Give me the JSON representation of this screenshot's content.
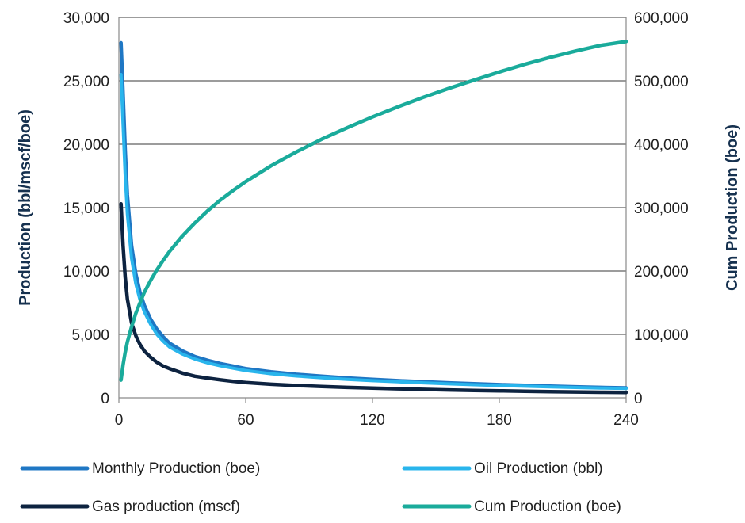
{
  "chart_data": {
    "type": "line",
    "title": "",
    "xlabel": "",
    "ylabel": "Production (bbl/mscf/boe)",
    "y2label": "Cum Production (boe)",
    "xlim": [
      0,
      240
    ],
    "ylim": [
      0,
      30000
    ],
    "y2lim": [
      0,
      600000
    ],
    "x_ticks": [
      "0",
      "60",
      "120",
      "180",
      "240"
    ],
    "y_ticks": [
      "0",
      "5,000",
      "10,000",
      "15,000",
      "20,000",
      "25,000",
      "30,000"
    ],
    "y2_ticks": [
      "0",
      "100,000",
      "200,000",
      "300,000",
      "400,000",
      "500,000",
      "600,000"
    ],
    "grid": true,
    "legend_position": "bottom",
    "series": [
      {
        "name": "Monthly Production (boe)",
        "axis": "left",
        "color": "#1f77c4",
        "x": [
          1,
          2,
          3,
          4,
          6,
          8,
          10,
          12,
          15,
          18,
          21,
          24,
          30,
          36,
          42,
          48,
          54,
          60,
          72,
          84,
          96,
          108,
          120,
          132,
          144,
          156,
          168,
          180,
          192,
          204,
          216,
          228,
          240
        ],
        "values": [
          28000,
          24000,
          19500,
          16000,
          12000,
          9800,
          8300,
          7300,
          6200,
          5400,
          4800,
          4300,
          3700,
          3250,
          2950,
          2700,
          2500,
          2300,
          2050,
          1850,
          1700,
          1560,
          1450,
          1350,
          1260,
          1180,
          1110,
          1040,
          980,
          920,
          870,
          820,
          780
        ]
      },
      {
        "name": "Oil Production (bbl)",
        "axis": "left",
        "color": "#29b5ec",
        "x": [
          1,
          2,
          3,
          4,
          6,
          8,
          10,
          12,
          15,
          18,
          21,
          24,
          30,
          36,
          42,
          48,
          54,
          60,
          72,
          84,
          96,
          108,
          120,
          132,
          144,
          156,
          168,
          180,
          192,
          204,
          216,
          228,
          240
        ],
        "values": [
          25500,
          21500,
          17500,
          14500,
          11000,
          9000,
          7700,
          6800,
          5800,
          5000,
          4450,
          4000,
          3450,
          3050,
          2750,
          2520,
          2330,
          2150,
          1900,
          1720,
          1580,
          1450,
          1350,
          1260,
          1180,
          1100,
          1030,
          970,
          910,
          860,
          810,
          770,
          730
        ]
      },
      {
        "name": "Gas production (mscf)",
        "axis": "left",
        "color": "#0d2340",
        "x": [
          1,
          2,
          3,
          4,
          6,
          8,
          10,
          12,
          15,
          18,
          21,
          24,
          30,
          36,
          42,
          48,
          54,
          60,
          72,
          84,
          96,
          108,
          120,
          132,
          144,
          156,
          168,
          180,
          192,
          204,
          216,
          228,
          240
        ],
        "values": [
          15300,
          12000,
          9500,
          7800,
          5900,
          4900,
          4200,
          3700,
          3200,
          2800,
          2500,
          2300,
          1950,
          1700,
          1550,
          1420,
          1300,
          1200,
          1070,
          970,
          890,
          820,
          760,
          710,
          660,
          620,
          580,
          550,
          520,
          490,
          465,
          440,
          420
        ]
      },
      {
        "name": "Cum Production (boe)",
        "axis": "right",
        "color": "#1aab9b",
        "x": [
          1,
          2,
          3,
          4,
          6,
          8,
          10,
          12,
          15,
          18,
          21,
          24,
          30,
          36,
          42,
          48,
          54,
          60,
          72,
          84,
          96,
          108,
          120,
          132,
          144,
          156,
          168,
          180,
          192,
          204,
          216,
          228,
          240
        ],
        "values": [
          28000,
          52000,
          72000,
          88000,
          112000,
          133000,
          150000,
          166000,
          185000,
          202000,
          217000,
          231000,
          255000,
          276000,
          295000,
          312000,
          327000,
          341000,
          366000,
          388000,
          408000,
          426000,
          443000,
          459000,
          474000,
          488000,
          501000,
          514000,
          526000,
          537000,
          547000,
          556000,
          562000
        ]
      }
    ]
  }
}
